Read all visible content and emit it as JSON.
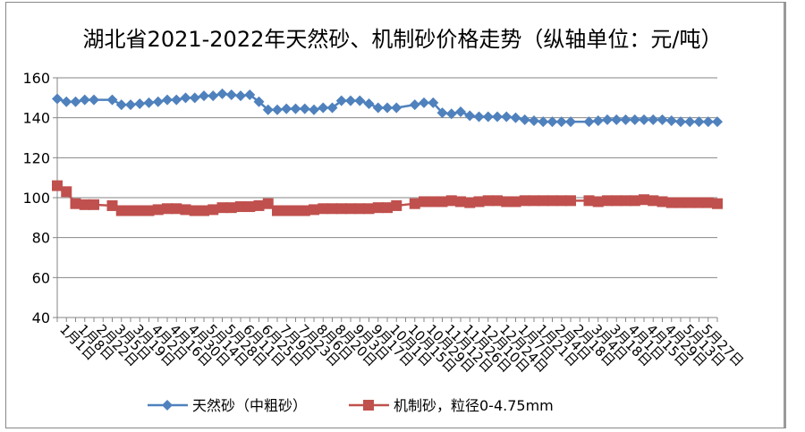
{
  "chart_data": {
    "type": "line",
    "title": "湖北省2021-2022年天然砂、机制砂价格走势（纵轴单位：元/吨）",
    "ylabel": "元/吨",
    "ylim": [
      40,
      160
    ],
    "yticks": [
      40,
      60,
      80,
      100,
      120,
      140,
      160
    ],
    "grid": true,
    "legend_position": "bottom",
    "tick_labels": [
      "1月1日",
      "1月8日",
      "2月22日",
      "3月5日",
      "3月19日",
      "4月2日",
      "4月16日",
      "4月30日",
      "5月14日",
      "5月28日",
      "6月11日",
      "6月25日",
      "7月9日",
      "7月23日",
      "8月6日",
      "8月20日",
      "9月3日",
      "9月17日",
      "10月1日",
      "10月15日",
      "10月29日",
      "11月12日",
      "11月26日",
      "12月10日",
      "12月24日",
      "1月7日",
      "1月21日",
      "2月4日",
      "2月18日",
      "3月4日",
      "3月18日",
      "4月1日",
      "4月15日",
      "4月29日",
      "5月13日",
      "5月27日"
    ],
    "series": [
      {
        "name": "天然砂（中粗砂）",
        "color": "#4F81BD",
        "marker": "diamond",
        "values": [
          149.5,
          148,
          148,
          149,
          149,
          null,
          149,
          146.5,
          146.5,
          147,
          147.5,
          148,
          149,
          149,
          150,
          150,
          151,
          151,
          152,
          151.5,
          151,
          151.5,
          148,
          144,
          144,
          144.5,
          144.5,
          144.5,
          144,
          145,
          145,
          148.5,
          148.5,
          148.5,
          147,
          145,
          145,
          145,
          null,
          146.5,
          147.5,
          147.5,
          142.5,
          142,
          143,
          141,
          140.5,
          140.5,
          140.5,
          140.5,
          140,
          139,
          138.5,
          138,
          138,
          138,
          138,
          null,
          138,
          138.5,
          139,
          139,
          139,
          139,
          139,
          139,
          139,
          138.5,
          138,
          138,
          138,
          138,
          138
        ]
      },
      {
        "name": "机制砂，粒径0-4.75mm",
        "color": "#C0504D",
        "marker": "square",
        "values": [
          106,
          103,
          97,
          96.5,
          96.5,
          null,
          96,
          93.5,
          93.5,
          93.5,
          93.5,
          94,
          94.5,
          94.5,
          94,
          93.5,
          93.5,
          94,
          95,
          95,
          95.5,
          95.5,
          96,
          97,
          93.5,
          93.5,
          93.5,
          93.5,
          94,
          94.5,
          94.5,
          94.5,
          94.5,
          94.5,
          94.5,
          95,
          95,
          96,
          null,
          97,
          98,
          98,
          98,
          98.5,
          98,
          97.5,
          98,
          98.5,
          98.5,
          98,
          98,
          98.5,
          98.5,
          98.5,
          98.5,
          98.5,
          98.5,
          null,
          98.5,
          98,
          98.5,
          98.5,
          98.5,
          98.5,
          99,
          98.5,
          98,
          97.5,
          97.5,
          97.5,
          97.5,
          97.5,
          97
        ]
      }
    ]
  }
}
